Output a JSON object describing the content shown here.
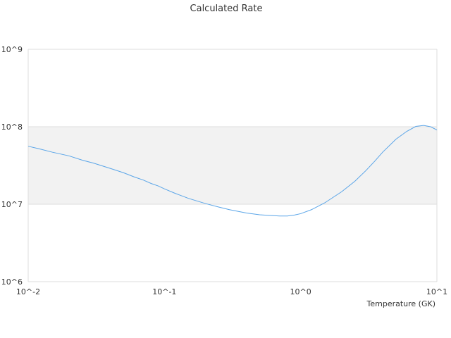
{
  "chart_data": {
    "type": "line",
    "title": "Calculated Rate",
    "xlabel": "Temperature (GK)",
    "ylabel": "",
    "x_scale": "log",
    "y_scale": "log",
    "xlim": [
      0.01,
      10
    ],
    "ylim": [
      1000000,
      1000000000
    ],
    "x_ticks": [
      "10^-2",
      "10^-1",
      "10^0",
      "10^1"
    ],
    "y_ticks": [
      "10^6",
      "10^7",
      "10^8",
      "10^9"
    ],
    "grid": true,
    "shaded_band": [
      10000000,
      100000000
    ],
    "colors": {
      "line": "#5aa5e8",
      "band": "#f2f2f2",
      "grid": "#dddddd"
    },
    "series": [
      {
        "x": [
          0.01,
          0.012,
          0.015,
          0.02,
          0.025,
          0.03,
          0.04,
          0.05,
          0.06,
          0.07,
          0.08,
          0.09,
          0.1,
          0.12,
          0.15,
          0.2,
          0.25,
          0.3,
          0.4,
          0.5,
          0.6,
          0.7,
          0.8,
          0.9,
          1.0,
          1.2,
          1.5,
          2.0,
          2.5,
          3.0,
          3.5,
          4.0,
          5.0,
          6.0,
          7.0,
          8.0,
          9.0,
          10.0
        ],
        "y": [
          56000000,
          52000000,
          47000000,
          42000000,
          37000000,
          34000000,
          29000000,
          25500000,
          22500000,
          20500000,
          18500000,
          17200000,
          15800000,
          13800000,
          11900000,
          10200000,
          9200000,
          8500000,
          7700000,
          7300000,
          7150000,
          7050000,
          7050000,
          7250000,
          7550000,
          8500000,
          10400000,
          14500000,
          19800000,
          27000000,
          36000000,
          47000000,
          69000000,
          87000000,
          101000000,
          104000000,
          100000000,
          91000000
        ]
      }
    ]
  }
}
